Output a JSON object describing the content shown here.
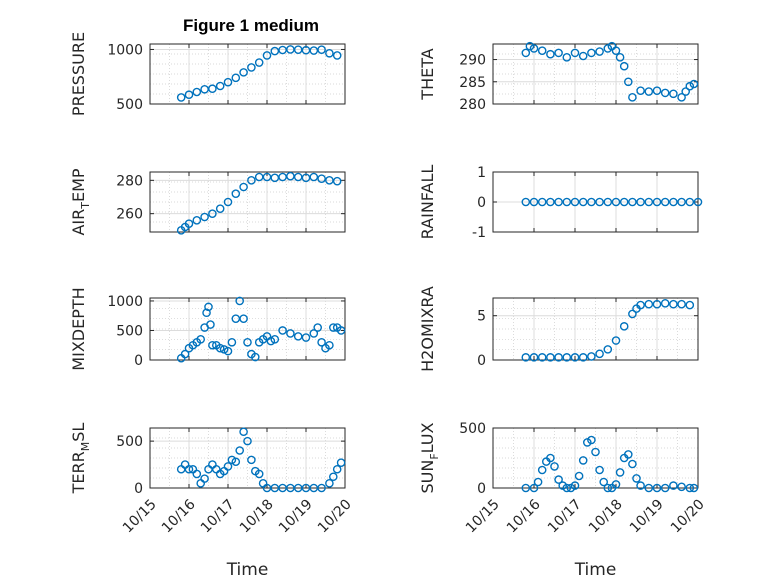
{
  "figure": {
    "title": "Figure 1 medium",
    "marker_color": "#0072BD"
  },
  "x_tick_labels": [
    "10/15",
    "10/16",
    "10/17",
    "10/18",
    "10/19",
    "10/20"
  ],
  "chart_data": [
    {
      "type": "scatter",
      "ylabel": "PRESSURE",
      "ylabel_sub": "",
      "xlabel": "",
      "xticklabels": false,
      "xlim": [
        0,
        5
      ],
      "ylim": [
        500,
        1050
      ],
      "yticks": [
        500,
        1000
      ],
      "grid": true,
      "minor_grid": true,
      "series": [
        {
          "x": [
            0.8,
            1.0,
            1.2,
            1.4,
            1.6,
            1.8,
            2.0,
            2.2,
            2.4,
            2.6,
            2.8,
            3.0,
            3.2,
            3.4,
            3.6,
            3.8,
            4.0,
            4.2,
            4.4,
            4.6,
            4.8
          ],
          "y": [
            560,
            585,
            610,
            635,
            640,
            665,
            700,
            740,
            790,
            835,
            880,
            945,
            985,
            995,
            1000,
            998,
            993,
            990,
            998,
            965,
            945
          ]
        }
      ]
    },
    {
      "type": "scatter",
      "ylabel": "THETA",
      "ylabel_sub": "",
      "xlabel": "",
      "xticklabels": false,
      "xlim": [
        0,
        5
      ],
      "ylim": [
        280,
        293.5
      ],
      "yticks": [
        280,
        285,
        290
      ],
      "grid": true,
      "minor_grid": true,
      "series": [
        {
          "x": [
            0.8,
            0.9,
            1.0,
            1.2,
            1.4,
            1.6,
            1.8,
            2.0,
            2.2,
            2.4,
            2.6,
            2.8,
            2.9,
            3.0,
            3.1,
            3.2,
            3.3,
            3.4,
            3.6,
            3.8,
            4.0,
            4.2,
            4.4,
            4.6,
            4.7,
            4.8,
            4.9
          ],
          "y": [
            291.5,
            293,
            292.5,
            292,
            291.2,
            291.5,
            290.5,
            291.5,
            290.8,
            291.5,
            291.8,
            292.5,
            293,
            292,
            290.5,
            288.5,
            285,
            281.5,
            283,
            282.8,
            283,
            282.5,
            282.3,
            281.5,
            282.8,
            284,
            284.5
          ]
        }
      ]
    },
    {
      "type": "scatter",
      "ylabel": "AIR",
      "ylabel_sub": "T",
      "ylabel_tail": "EMP",
      "xlabel": "",
      "xticklabels": false,
      "xlim": [
        0,
        5
      ],
      "ylim": [
        249,
        285
      ],
      "yticks": [
        260,
        280
      ],
      "grid": true,
      "minor_grid": true,
      "series": [
        {
          "x": [
            0.8,
            0.9,
            1.0,
            1.2,
            1.4,
            1.6,
            1.8,
            2.0,
            2.2,
            2.4,
            2.6,
            2.8,
            3.0,
            3.2,
            3.4,
            3.6,
            3.8,
            4.0,
            4.2,
            4.4,
            4.6,
            4.8
          ],
          "y": [
            250,
            252,
            254,
            256,
            258,
            260,
            263,
            267,
            272,
            276,
            280,
            282,
            282,
            281.5,
            282,
            282.5,
            282,
            281.5,
            282,
            281,
            280,
            279.5
          ]
        }
      ]
    },
    {
      "type": "scatter",
      "ylabel": "RAINFALL",
      "ylabel_sub": "",
      "xlabel": "",
      "xticklabels": false,
      "xlim": [
        0,
        5
      ],
      "ylim": [
        -1,
        1
      ],
      "yticks": [
        -1,
        0,
        1
      ],
      "grid": true,
      "minor_grid": false,
      "series": [
        {
          "x": [
            0.8,
            1.0,
            1.2,
            1.4,
            1.6,
            1.8,
            2.0,
            2.2,
            2.4,
            2.6,
            2.8,
            3.0,
            3.2,
            3.4,
            3.6,
            3.8,
            4.0,
            4.2,
            4.4,
            4.6,
            4.8,
            5.0
          ],
          "y": [
            0,
            0,
            0,
            0,
            0,
            0,
            0,
            0,
            0,
            0,
            0,
            0,
            0,
            0,
            0,
            0,
            0,
            0,
            0,
            0,
            0,
            0
          ]
        }
      ]
    },
    {
      "type": "scatter",
      "ylabel": "MIXDEPTH",
      "ylabel_sub": "",
      "xlabel": "",
      "xticklabels": false,
      "xlim": [
        0,
        5
      ],
      "ylim": [
        0,
        1050
      ],
      "yticks": [
        0,
        500,
        1000
      ],
      "grid": true,
      "minor_grid": true,
      "series": [
        {
          "x": [
            0.8,
            0.9,
            1.0,
            1.1,
            1.2,
            1.3,
            1.4,
            1.45,
            1.5,
            1.55,
            1.6,
            1.7,
            1.8,
            1.9,
            2.0,
            2.1,
            2.2,
            2.3,
            2.4,
            2.5,
            2.6,
            2.7,
            2.8,
            2.9,
            3.0,
            3.1,
            3.2,
            3.4,
            3.6,
            3.8,
            4.0,
            4.2,
            4.3,
            4.4,
            4.5,
            4.6,
            4.7,
            4.8,
            4.9
          ],
          "y": [
            30,
            100,
            200,
            250,
            300,
            350,
            550,
            800,
            900,
            600,
            250,
            250,
            200,
            180,
            150,
            300,
            700,
            1000,
            700,
            300,
            100,
            50,
            300,
            350,
            400,
            320,
            350,
            500,
            450,
            400,
            380,
            450,
            550,
            300,
            200,
            250,
            550,
            550,
            500
          ]
        }
      ]
    },
    {
      "type": "scatter",
      "ylabel": "H2OMIXRA",
      "ylabel_sub": "",
      "xlabel": "",
      "xticklabels": false,
      "xlim": [
        0,
        5
      ],
      "ylim": [
        0,
        7
      ],
      "yticks": [
        0,
        5
      ],
      "grid": true,
      "minor_grid": true,
      "series": [
        {
          "x": [
            0.8,
            1.0,
            1.2,
            1.4,
            1.6,
            1.8,
            2.0,
            2.2,
            2.4,
            2.6,
            2.8,
            3.0,
            3.2,
            3.4,
            3.5,
            3.6,
            3.8,
            4.0,
            4.2,
            4.4,
            4.6,
            4.8
          ],
          "y": [
            0.3,
            0.3,
            0.3,
            0.3,
            0.3,
            0.3,
            0.3,
            0.3,
            0.4,
            0.7,
            1.2,
            2.2,
            3.8,
            5.2,
            5.8,
            6.2,
            6.3,
            6.3,
            6.4,
            6.3,
            6.3,
            6.2
          ]
        }
      ]
    },
    {
      "type": "scatter",
      "ylabel": "TERR",
      "ylabel_sub": "M",
      "ylabel_tail": "SL",
      "xlabel": "Time",
      "xticklabels": true,
      "xlim": [
        0,
        5
      ],
      "ylim": [
        0,
        640
      ],
      "yticks": [
        0,
        500
      ],
      "grid": true,
      "minor_grid": true,
      "series": [
        {
          "x": [
            0.8,
            0.9,
            1.0,
            1.1,
            1.2,
            1.3,
            1.4,
            1.5,
            1.6,
            1.7,
            1.8,
            1.9,
            2.0,
            2.1,
            2.2,
            2.3,
            2.4,
            2.5,
            2.6,
            2.7,
            2.8,
            2.9,
            3.0,
            3.2,
            3.4,
            3.6,
            3.8,
            4.0,
            4.2,
            4.4,
            4.6,
            4.7,
            4.8,
            4.9
          ],
          "y": [
            200,
            250,
            200,
            200,
            150,
            50,
            100,
            200,
            250,
            200,
            150,
            180,
            230,
            300,
            280,
            400,
            600,
            500,
            300,
            180,
            150,
            50,
            0,
            0,
            0,
            0,
            0,
            0,
            0,
            0,
            50,
            120,
            200,
            270
          ]
        }
      ]
    },
    {
      "type": "scatter",
      "ylabel": "SUN",
      "ylabel_sub": "F",
      "ylabel_tail": "LUX",
      "xlabel": "Time",
      "xticklabels": true,
      "xlim": [
        0,
        5
      ],
      "ylim": [
        0,
        500
      ],
      "yticks": [
        0,
        500
      ],
      "grid": true,
      "minor_grid": true,
      "series": [
        {
          "x": [
            0.8,
            1.0,
            1.1,
            1.2,
            1.3,
            1.4,
            1.5,
            1.6,
            1.7,
            1.8,
            1.9,
            2.0,
            2.1,
            2.2,
            2.3,
            2.4,
            2.5,
            2.6,
            2.7,
            2.8,
            2.9,
            3.0,
            3.1,
            3.2,
            3.3,
            3.4,
            3.5,
            3.6,
            3.8,
            4.0,
            4.2,
            4.4,
            4.6,
            4.8,
            4.9
          ],
          "y": [
            0,
            0,
            50,
            150,
            220,
            250,
            180,
            70,
            20,
            0,
            0,
            20,
            100,
            230,
            380,
            400,
            300,
            150,
            50,
            0,
            0,
            30,
            130,
            250,
            280,
            200,
            80,
            20,
            0,
            0,
            0,
            20,
            10,
            0,
            0
          ]
        }
      ]
    }
  ]
}
